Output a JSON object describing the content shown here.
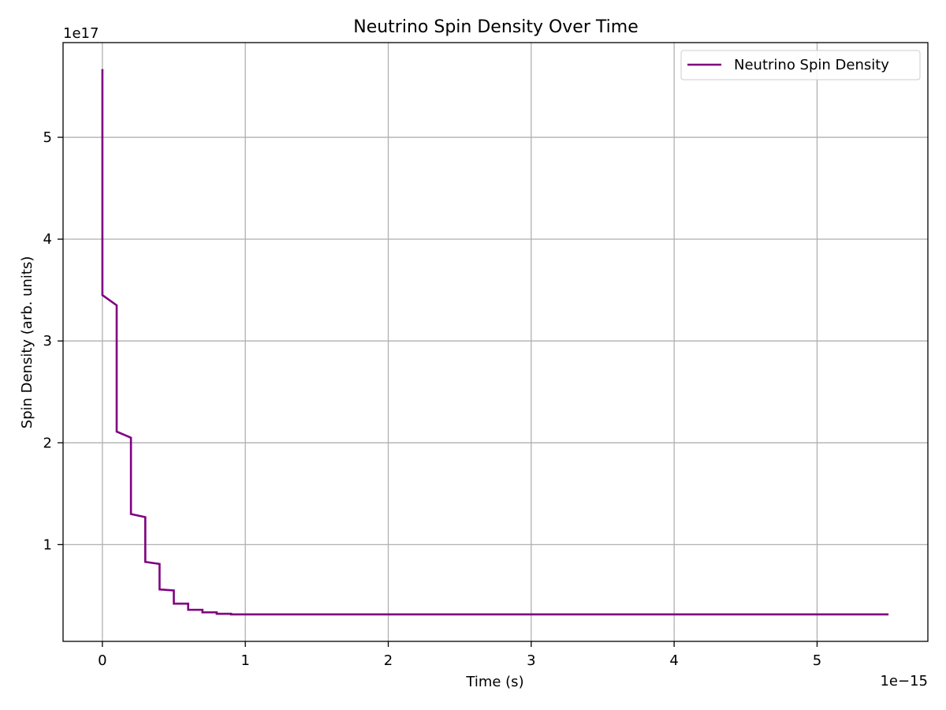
{
  "chart_data": {
    "type": "line",
    "title": "Neutrino Spin Density Over Time",
    "xlabel": "Time (s)",
    "ylabel": "Spin Density (arb. units)",
    "x_offset_label": "1e−15",
    "y_offset_label": "1e17",
    "xlim": [
      -0.275,
      5.775
    ],
    "ylim": [
      0.05,
      5.93
    ],
    "x_ticks": [
      0,
      1,
      2,
      3,
      4,
      5
    ],
    "y_ticks": [
      1,
      2,
      3,
      4,
      5
    ],
    "x_tick_labels": [
      "0",
      "1",
      "2",
      "3",
      "4",
      "5"
    ],
    "y_tick_labels": [
      "1",
      "2",
      "3",
      "4",
      "5"
    ],
    "grid": true,
    "legend_position": "top-right",
    "series": [
      {
        "name": "Neutrino Spin Density",
        "color": "#800080",
        "x": [
          0,
          0,
          0.1,
          0.1,
          0.2,
          0.2,
          0.3,
          0.3,
          0.4,
          0.4,
          0.5,
          0.5,
          0.6,
          0.6,
          0.7,
          0.7,
          0.8,
          0.8,
          0.9,
          0.9,
          5.5
        ],
        "y": [
          5.67,
          3.45,
          3.35,
          2.11,
          2.05,
          1.3,
          1.27,
          0.83,
          0.81,
          0.56,
          0.55,
          0.42,
          0.42,
          0.36,
          0.36,
          0.335,
          0.335,
          0.32,
          0.32,
          0.315,
          0.315
        ]
      }
    ]
  }
}
